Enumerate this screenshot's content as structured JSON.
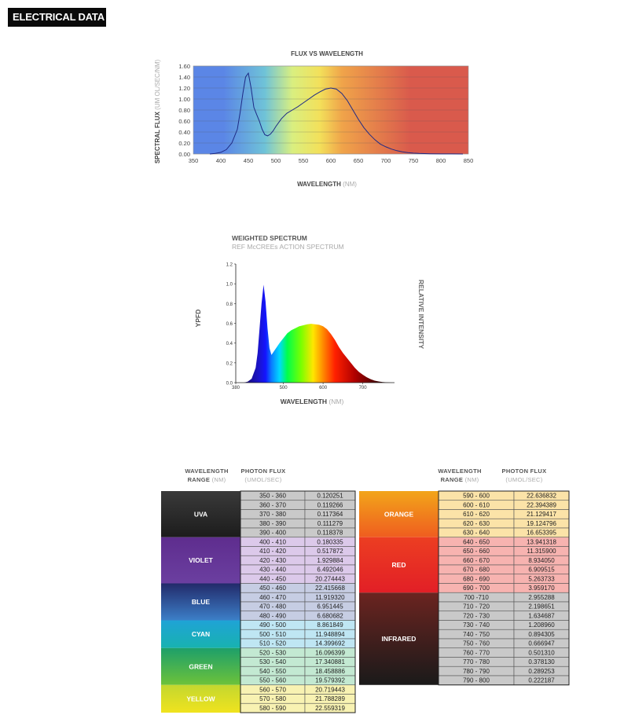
{
  "header": {
    "title": "ELECTRICAL DATA"
  },
  "chart_data": [
    {
      "type": "line",
      "title": "FLUX VS WAVELENGTH",
      "xlabel": "WAVELENGTH",
      "xlabel_unit": "(NM)",
      "ylabel": "SPECTRAL FLUX",
      "ylabel_unit": "(UM OL/SEC/NM)",
      "xlim": [
        350,
        850
      ],
      "ylim": [
        0,
        1.6
      ],
      "x_ticks": [
        "350",
        "400",
        "450",
        "500",
        "550",
        "600",
        "650",
        "700",
        "750",
        "800",
        "850"
      ],
      "y_ticks": [
        "0.00",
        "0.20",
        "0.40",
        "0.60",
        "0.80",
        "1.00",
        "1.20",
        "1.40",
        "1.60"
      ],
      "grid": true,
      "bands": [
        {
          "from": 350,
          "to": 460,
          "color": "#5b86e6"
        },
        {
          "from": 460,
          "to": 500,
          "color": "#6fc3d8"
        },
        {
          "from": 500,
          "to": 560,
          "color": "#d9ef80"
        },
        {
          "from": 560,
          "to": 600,
          "color": "#f3e05a"
        },
        {
          "from": 600,
          "to": 640,
          "color": "#f0a44a"
        },
        {
          "from": 640,
          "to": 850,
          "color": "#d95a4c"
        }
      ],
      "series": [
        {
          "x": [
            380,
            390,
            400,
            410,
            420,
            430,
            435,
            440,
            445,
            450,
            455,
            460,
            465,
            470,
            475,
            480,
            485,
            490,
            495,
            500,
            510,
            520,
            530,
            540,
            550,
            560,
            570,
            580,
            590,
            600,
            610,
            620,
            630,
            640,
            650,
            660,
            670,
            680,
            690,
            700,
            710,
            720,
            730,
            740,
            750,
            760,
            780,
            800,
            820,
            840
          ],
          "y": [
            0.0,
            0.01,
            0.03,
            0.08,
            0.2,
            0.45,
            0.75,
            1.1,
            1.4,
            1.47,
            1.2,
            0.85,
            0.72,
            0.6,
            0.45,
            0.35,
            0.33,
            0.36,
            0.42,
            0.5,
            0.64,
            0.74,
            0.8,
            0.86,
            0.93,
            1.0,
            1.07,
            1.13,
            1.18,
            1.2,
            1.18,
            1.1,
            0.97,
            0.8,
            0.63,
            0.48,
            0.36,
            0.26,
            0.18,
            0.13,
            0.09,
            0.06,
            0.04,
            0.025,
            0.015,
            0.01,
            0.005,
            0.002,
            0.001,
            0.0
          ]
        }
      ],
      "line_color": "#1e2a86"
    },
    {
      "type": "area",
      "title": "WEIGHTED SPECTRUM",
      "subtitle": "REF McCREEs ACTION SPECTRUM",
      "xlabel": "WAVELENGTH",
      "xlabel_unit": "(NM)",
      "ylabel": "YPFD",
      "ylabel_right": "RELATIVE INTENSITY",
      "xlim": [
        380,
        780
      ],
      "ylim": [
        0,
        1.2
      ],
      "x_ticks": [
        {
          "v": 380,
          "label": "380"
        },
        {
          "v": 500,
          "label": "500"
        },
        {
          "v": 600,
          "label": "600"
        },
        {
          "v": 700,
          "label": "700"
        }
      ],
      "y_ticks": [
        "0.0",
        "0.2",
        "0.4",
        "0.6",
        "0.8",
        "1.0",
        "1.2"
      ],
      "grid": false,
      "series": [
        {
          "x": [
            400,
            410,
            420,
            430,
            435,
            440,
            445,
            450,
            455,
            460,
            465,
            470,
            480,
            490,
            500,
            510,
            520,
            530,
            540,
            550,
            560,
            570,
            580,
            590,
            600,
            610,
            620,
            630,
            640,
            650,
            660,
            670,
            680,
            690,
            700,
            710,
            720,
            730,
            740,
            750,
            760,
            770,
            780
          ],
          "y": [
            0.0,
            0.01,
            0.04,
            0.15,
            0.3,
            0.55,
            0.8,
            0.99,
            0.82,
            0.55,
            0.35,
            0.28,
            0.34,
            0.4,
            0.45,
            0.5,
            0.53,
            0.55,
            0.57,
            0.58,
            0.59,
            0.595,
            0.59,
            0.585,
            0.57,
            0.54,
            0.49,
            0.43,
            0.36,
            0.3,
            0.25,
            0.2,
            0.15,
            0.11,
            0.08,
            0.055,
            0.035,
            0.02,
            0.012,
            0.006,
            0.003,
            0.001,
            0.0
          ]
        }
      ]
    },
    {
      "type": "table",
      "headers": [
        {
          "main": "WAVELENGTH",
          "sub": "RANGE",
          "unit": "(NM)"
        },
        {
          "main": "PHOTON FLUX",
          "sub": "",
          "unit": "(UMOL/SEC)"
        }
      ],
      "left_groups": [
        {
          "label": "UVA",
          "gradient": [
            "#3a3a3a",
            "#1c1c1c"
          ]
        },
        {
          "label": "VIOLET",
          "gradient": [
            "#5e2d8e",
            "#6b3fa0"
          ]
        },
        {
          "label": "BLUE",
          "gradient": [
            "#222a6a",
            "#3c7fc8"
          ]
        },
        {
          "label": "CYAN",
          "gradient": [
            "#1fa3d6",
            "#18b2b0"
          ]
        },
        {
          "label": "GREEN",
          "gradient": [
            "#1d9f6a",
            "#6dc23a"
          ]
        },
        {
          "label": "YELLOW",
          "gradient": [
            "#c3d72f",
            "#f0e31e"
          ]
        }
      ],
      "right_groups": [
        {
          "label": "ORANGE",
          "gradient": [
            "#f2a51a",
            "#ef5d1f"
          ]
        },
        {
          "label": "RED",
          "gradient": [
            "#ec3e22",
            "#e21f26"
          ]
        },
        {
          "label": "INFRARED",
          "gradient": [
            "#6b2420",
            "#1a1a1a"
          ]
        }
      ],
      "left_rows": [
        {
          "range": "350 - 360",
          "value": "0.120251",
          "color": "#c9c9c9"
        },
        {
          "range": "360 - 370",
          "value": "0.119266",
          "color": "#c9c9c9"
        },
        {
          "range": "370 - 380",
          "value": "0.117364",
          "color": "#c9c9c9"
        },
        {
          "range": "380 - 390",
          "value": "0.111279",
          "color": "#c9c9c9"
        },
        {
          "range": "390 - 400",
          "value": "0.118378",
          "color": "#c9c9c9"
        },
        {
          "range": "400 - 410",
          "value": "0.180335",
          "color": "#dcc9ea"
        },
        {
          "range": "410 - 420",
          "value": "0.517872",
          "color": "#dcc9ea"
        },
        {
          "range": "420 - 430",
          "value": "1.929884",
          "color": "#dcc9ea"
        },
        {
          "range": "430 - 440",
          "value": "6.492046",
          "color": "#dcc9ea"
        },
        {
          "range": "440 - 450",
          "value": "20.274443",
          "color": "#dcc9ea"
        },
        {
          "range": "450 - 460",
          "value": "22.415668",
          "color": "#c6cde3"
        },
        {
          "range": "460 - 470",
          "value": "11.919320",
          "color": "#c6cde3"
        },
        {
          "range": "470 - 480",
          "value": "6.951445",
          "color": "#c6cde3"
        },
        {
          "range": "480 - 490",
          "value": "6.680682",
          "color": "#c6cde3"
        },
        {
          "range": "490 - 500",
          "value": "8.861849",
          "color": "#bfe6f3"
        },
        {
          "range": "500 - 510",
          "value": "11.948894",
          "color": "#bfe6f3"
        },
        {
          "range": "510 - 520",
          "value": "14.399692",
          "color": "#bfe6f3"
        },
        {
          "range": "520 - 530",
          "value": "16.096399",
          "color": "#c3e9d2"
        },
        {
          "range": "530 - 540",
          "value": "17.340881",
          "color": "#c3e9d2"
        },
        {
          "range": "540 - 550",
          "value": "18.458886",
          "color": "#c3e9d2"
        },
        {
          "range": "550 - 560",
          "value": "19.579392",
          "color": "#c3e9d2"
        },
        {
          "range": "560 - 570",
          "value": "20.719443",
          "color": "#f8f2b2"
        },
        {
          "range": "570 - 580",
          "value": "21.788289",
          "color": "#f8f2b2"
        },
        {
          "range": "580 - 590",
          "value": "22.559319",
          "color": "#f8f2b2"
        }
      ],
      "right_rows": [
        {
          "range": "590 - 600",
          "value": "22.636832",
          "color": "#fbe3a8"
        },
        {
          "range": "600 - 610",
          "value": "22.394389",
          "color": "#fbe3a8"
        },
        {
          "range": "610 - 620",
          "value": "21.129417",
          "color": "#fbe3a8"
        },
        {
          "range": "620 - 630",
          "value": "19.124796",
          "color": "#fbe3a8"
        },
        {
          "range": "630 - 640",
          "value": "16.653395",
          "color": "#fbe3a8"
        },
        {
          "range": "640 - 650",
          "value": "13.941318",
          "color": "#f7b3b0"
        },
        {
          "range": "650 - 660",
          "value": "11.315900",
          "color": "#f7b3b0"
        },
        {
          "range": "660 - 670",
          "value": "8.934050",
          "color": "#f7b3b0"
        },
        {
          "range": "670 - 680",
          "value": "6.909515",
          "color": "#f7b3b0"
        },
        {
          "range": "680 - 690",
          "value": "5.263733",
          "color": "#f7b3b0"
        },
        {
          "range": "690 - 700",
          "value": "3.959170",
          "color": "#f7b3b0"
        },
        {
          "range": "700 -710",
          "value": "2.955288",
          "color": "#c9c9c9"
        },
        {
          "range": "710 - 720",
          "value": "2.198651",
          "color": "#c9c9c9"
        },
        {
          "range": "720 - 730",
          "value": "1.634687",
          "color": "#c9c9c9"
        },
        {
          "range": "730 - 740",
          "value": "1.208960",
          "color": "#c9c9c9"
        },
        {
          "range": "740 - 750",
          "value": "0.894305",
          "color": "#c9c9c9"
        },
        {
          "range": "750 - 760",
          "value": "0.666947",
          "color": "#c9c9c9"
        },
        {
          "range": "760 - 770",
          "value": "0.501310",
          "color": "#c9c9c9"
        },
        {
          "range": "770 - 780",
          "value": "0.378130",
          "color": "#c9c9c9"
        },
        {
          "range": "780 - 790",
          "value": "0.289253",
          "color": "#c9c9c9"
        },
        {
          "range": "790 - 800",
          "value": "0.222187",
          "color": "#c9c9c9"
        }
      ],
      "left_group_rows": [
        5,
        5,
        4,
        3,
        4,
        3
      ],
      "right_group_rows": [
        5,
        6,
        10
      ]
    }
  ]
}
